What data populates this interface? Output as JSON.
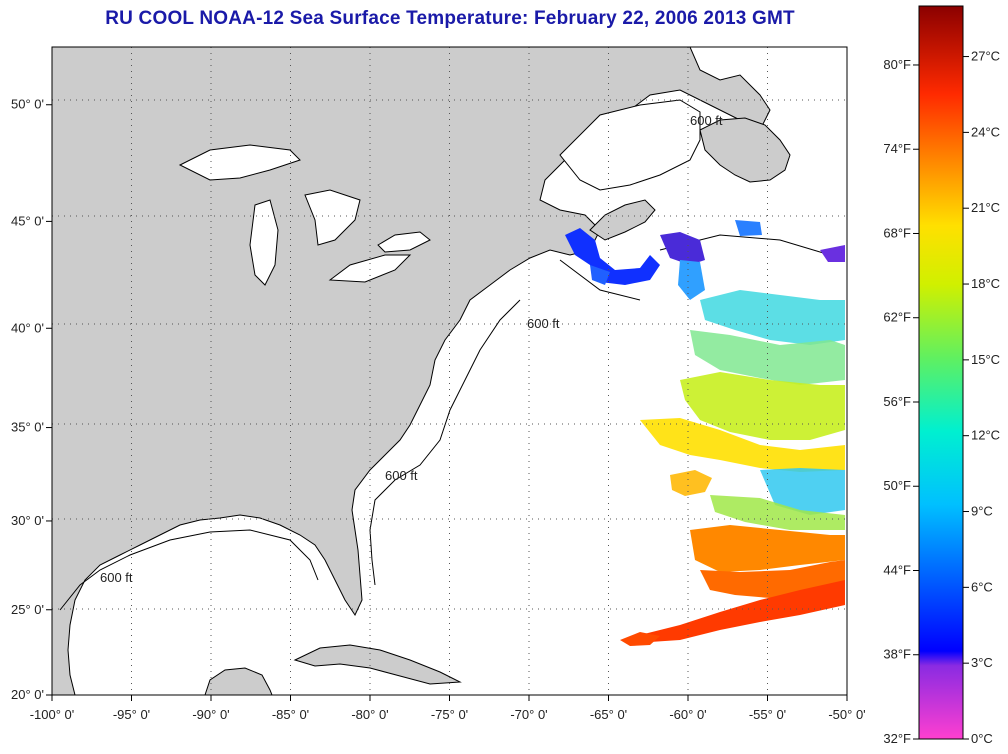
{
  "header": {
    "title": "RU COOL  NOAA-12  Sea Surface Temperature:  February 22, 2006 2013 GMT"
  },
  "axes": {
    "lon_labels": [
      "-100° 0'",
      "-95° 0'",
      "-90° 0'",
      "-85° 0'",
      "-80° 0'",
      "-75° 0'",
      "-70° 0'",
      "-65° 0'",
      "-60° 0'",
      "-55° 0'",
      "-50° 0'"
    ],
    "lon_values": [
      -100,
      -95,
      -90,
      -85,
      -80,
      -75,
      -70,
      -65,
      -60,
      -55,
      -50
    ],
    "lat_labels": [
      "20° 0'",
      "25° 0'",
      "30° 0'",
      "35° 0'",
      "40° 0'",
      "45° 0'",
      "50° 0'"
    ],
    "lat_values": [
      20,
      25,
      30,
      35,
      40,
      45,
      50
    ]
  },
  "bathymetry": {
    "contour_label": "600 ft"
  },
  "colorbar": {
    "fahrenheit_labels": [
      "32°F",
      "38°F",
      "44°F",
      "50°F",
      "56°F",
      "62°F",
      "68°F",
      "74°F",
      "80°F"
    ],
    "celsius_labels": [
      "0°C",
      "3°C",
      "6°C",
      "9°C",
      "12°C",
      "15°C",
      "18°C",
      "21°C",
      "24°C",
      "27°C"
    ],
    "celsius_values": [
      0,
      3,
      6,
      9,
      12,
      15,
      18,
      21,
      24,
      27
    ],
    "range_c": [
      0,
      29
    ],
    "colors": [
      "#ff3fd0",
      "#8a2be2",
      "#0000ff",
      "#0080ff",
      "#00e0e0",
      "#40e080",
      "#c0f000",
      "#ffff00",
      "#ffa000",
      "#ff3000",
      "#a00000"
    ]
  },
  "land_color": "#cccccc",
  "ocean_color": "#ffffff"
}
